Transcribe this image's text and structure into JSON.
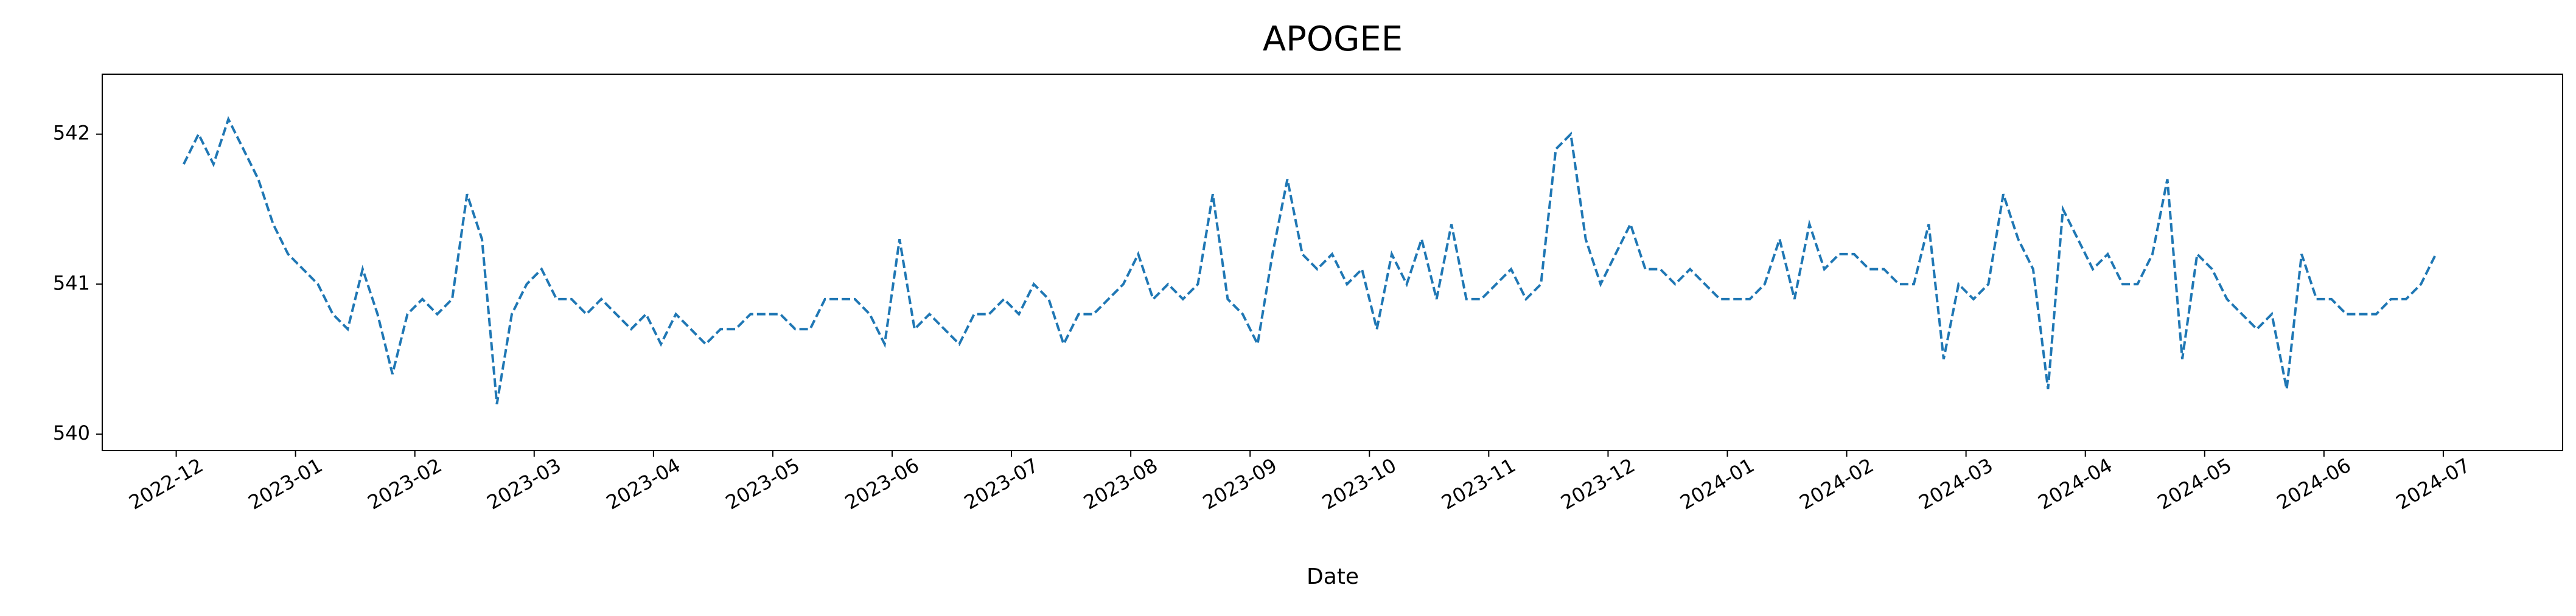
{
  "chart_data": {
    "type": "line",
    "title": "APOGEE",
    "x_label": "Date",
    "x": [
      "2022-12",
      "2022-12",
      "2022-12",
      "2022-12",
      "2022-12",
      "2022-12",
      "2022-12",
      "2022-12",
      "2023-01",
      "2023-01",
      "2023-01",
      "2023-01",
      "2023-01",
      "2023-01",
      "2023-01",
      "2023-01",
      "2023-02",
      "2023-02",
      "2023-02",
      "2023-02",
      "2023-02",
      "2023-02",
      "2023-02",
      "2023-02",
      "2023-03",
      "2023-03",
      "2023-03",
      "2023-03",
      "2023-03",
      "2023-03",
      "2023-03",
      "2023-03",
      "2023-04",
      "2023-04",
      "2023-04",
      "2023-04",
      "2023-04",
      "2023-04",
      "2023-04",
      "2023-04",
      "2023-05",
      "2023-05",
      "2023-05",
      "2023-05",
      "2023-05",
      "2023-05",
      "2023-05",
      "2023-05",
      "2023-06",
      "2023-06",
      "2023-06",
      "2023-06",
      "2023-06",
      "2023-06",
      "2023-06",
      "2023-06",
      "2023-07",
      "2023-07",
      "2023-07",
      "2023-07",
      "2023-07",
      "2023-07",
      "2023-07",
      "2023-07",
      "2023-08",
      "2023-08",
      "2023-08",
      "2023-08",
      "2023-08",
      "2023-08",
      "2023-08",
      "2023-08",
      "2023-09",
      "2023-09",
      "2023-09",
      "2023-09",
      "2023-09",
      "2023-09",
      "2023-09",
      "2023-09",
      "2023-10",
      "2023-10",
      "2023-10",
      "2023-10",
      "2023-10",
      "2023-10",
      "2023-10",
      "2023-10",
      "2023-11",
      "2023-11",
      "2023-11",
      "2023-11",
      "2023-11",
      "2023-11",
      "2023-11",
      "2023-11",
      "2023-12",
      "2023-12",
      "2023-12",
      "2023-12",
      "2023-12",
      "2023-12",
      "2023-12",
      "2023-12",
      "2024-01",
      "2024-01",
      "2024-01",
      "2024-01",
      "2024-01",
      "2024-01",
      "2024-01",
      "2024-01",
      "2024-02",
      "2024-02",
      "2024-02",
      "2024-02",
      "2024-02",
      "2024-02",
      "2024-02",
      "2024-02",
      "2024-03",
      "2024-03",
      "2024-03",
      "2024-03",
      "2024-03",
      "2024-03",
      "2024-03",
      "2024-03",
      "2024-04",
      "2024-04",
      "2024-04",
      "2024-04",
      "2024-04",
      "2024-04",
      "2024-04",
      "2024-04",
      "2024-05",
      "2024-05",
      "2024-05",
      "2024-05",
      "2024-05",
      "2024-05",
      "2024-05",
      "2024-05",
      "2024-06",
      "2024-06",
      "2024-06",
      "2024-06",
      "2024-06",
      "2024-06",
      "2024-06",
      "2024-06"
    ],
    "series": [
      {
        "name": "APOGEE",
        "color": "#1f77b4",
        "values": [
          541.8,
          542.0,
          541.8,
          542.1,
          541.9,
          541.7,
          541.4,
          541.2,
          541.1,
          541.0,
          540.8,
          540.7,
          541.1,
          540.8,
          540.4,
          540.8,
          540.9,
          540.8,
          540.9,
          541.6,
          541.3,
          540.2,
          540.8,
          541.0,
          541.1,
          540.9,
          540.9,
          540.8,
          540.9,
          540.8,
          540.7,
          540.8,
          540.6,
          540.8,
          540.7,
          540.6,
          540.7,
          540.7,
          540.8,
          540.8,
          540.8,
          540.7,
          540.7,
          540.9,
          540.9,
          540.9,
          540.8,
          540.6,
          541.3,
          540.7,
          540.8,
          540.7,
          540.6,
          540.8,
          540.8,
          540.9,
          540.8,
          541.0,
          540.9,
          540.6,
          540.8,
          540.8,
          540.9,
          541.0,
          541.2,
          540.9,
          541.0,
          540.9,
          541.0,
          541.6,
          540.9,
          540.8,
          540.6,
          541.2,
          541.7,
          541.2,
          541.1,
          541.2,
          541.0,
          541.1,
          540.7,
          541.2,
          541.0,
          541.3,
          540.9,
          541.4,
          540.9,
          540.9,
          541.0,
          541.1,
          540.9,
          541.0,
          541.9,
          542.0,
          541.3,
          541.0,
          541.2,
          541.4,
          541.1,
          541.1,
          541.0,
          541.1,
          541.0,
          540.9,
          540.9,
          540.9,
          541.0,
          541.3,
          540.9,
          541.4,
          541.1,
          541.2,
          541.2,
          541.1,
          541.1,
          541.0,
          541.0,
          541.4,
          540.5,
          541.0,
          540.9,
          541.0,
          541.6,
          541.3,
          541.1,
          540.3,
          541.5,
          541.3,
          541.1,
          541.2,
          541.0,
          541.0,
          541.2,
          541.7,
          540.5,
          541.2,
          541.1,
          540.9,
          540.8,
          540.7,
          540.8,
          540.3,
          541.2,
          540.9,
          540.9,
          540.8,
          540.8,
          540.8,
          540.9,
          540.9,
          541.0,
          541.2
        ]
      }
    ],
    "xticks": [
      "2022-12",
      "2023-01",
      "2023-02",
      "2023-03",
      "2023-04",
      "2023-05",
      "2023-06",
      "2023-07",
      "2023-08",
      "2023-09",
      "2023-10",
      "2023-11",
      "2023-12",
      "2024-01",
      "2024-02",
      "2024-03",
      "2024-04",
      "2024-05",
      "2024-06",
      "2024-07"
    ],
    "ylim": [
      539.89,
      542.4
    ],
    "yticks": [
      540,
      541,
      542
    ],
    "grid": false,
    "line_style": "dashed"
  }
}
